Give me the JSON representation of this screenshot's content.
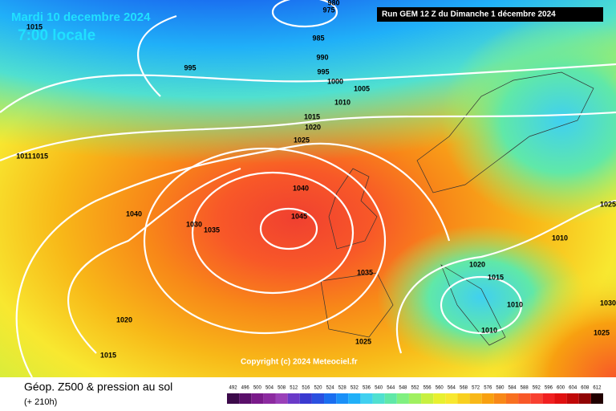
{
  "header": {
    "date": "Mardi 10 decembre 2024",
    "time": "7:00 locale",
    "run": "Run GEM 12 Z du Dimanche 1 décembre 2024"
  },
  "copyright": "Copyright (c) 2024 Meteociel.fr",
  "footer": {
    "title": "Géop. Z500 & pression au sol",
    "subtitle": "(+ 210h)"
  },
  "isobar_labels": [
    "980",
    "975",
    "985",
    "990",
    "995",
    "1000",
    "1005",
    "1010",
    "1015",
    "1020",
    "1025",
    "995",
    "1015",
    "1011",
    "1015",
    "1040",
    "1040",
    "1045",
    "1030",
    "1035",
    "1035",
    "1020",
    "1015",
    "1025",
    "1020",
    "1015",
    "1010",
    "1010",
    "1010",
    "1025",
    "1025",
    "1030"
  ],
  "legend": {
    "values": [
      492,
      496,
      500,
      504,
      508,
      512,
      516,
      520,
      524,
      528,
      532,
      536,
      540,
      544,
      548,
      552,
      556,
      560,
      564,
      568,
      572,
      576,
      580,
      584,
      588,
      592,
      596,
      600,
      604,
      608,
      612
    ],
    "colors": [
      "#3c0a4a",
      "#5a0f6a",
      "#7a1a8a",
      "#8c2aa0",
      "#9a40b8",
      "#6a3ac8",
      "#3a3ad0",
      "#2a50e0",
      "#1a6ef0",
      "#1a90f8",
      "#20b0f8",
      "#40d0f0",
      "#50e0d0",
      "#60e8a8",
      "#80f080",
      "#a0f060",
      "#c8f040",
      "#e8f030",
      "#f8e830",
      "#f8d020",
      "#f8b818",
      "#f8a010",
      "#f88818",
      "#f87020",
      "#f85828",
      "#f84030",
      "#f02020",
      "#e01010",
      "#c00808",
      "#900404",
      "#200000"
    ]
  }
}
